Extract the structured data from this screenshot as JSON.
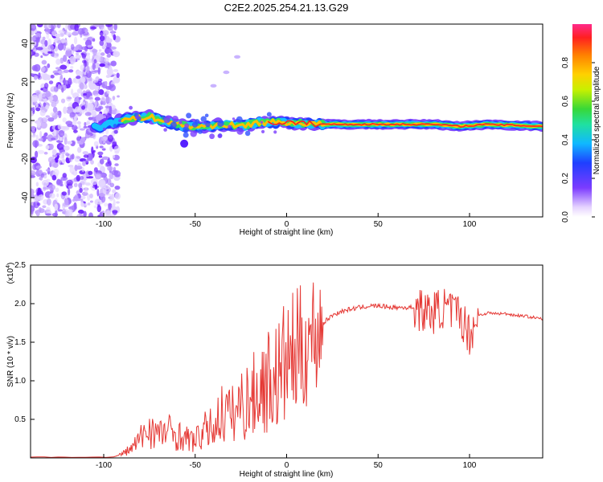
{
  "title": "C2E2.2025.254.21.13.G29",
  "colors": {
    "snr_line": "#e53935",
    "background": "#ffffff",
    "axis": "#000000"
  },
  "chart_data": [
    {
      "type": "heatmap",
      "title": "C2E2.2025.254.21.13.G29",
      "xlabel": "Height of straight line (km)",
      "ylabel": "Frequency (Hz)",
      "xlim": [
        -140,
        140
      ],
      "ylim": [
        -50,
        50
      ],
      "xticks": [
        "-100",
        "-50",
        "0",
        "50",
        "100"
      ],
      "yticks": [
        "-40",
        "-20",
        "0",
        "20",
        "40"
      ],
      "colorbar": {
        "label": "Normalized spectral amplitude",
        "ticks": [
          "0.0",
          "0.2",
          "0.4",
          "0.6",
          "0.8"
        ],
        "range": [
          0,
          1
        ]
      },
      "ridge": [
        {
          "x": -105,
          "f": -4
        },
        {
          "x": -95,
          "f": -1
        },
        {
          "x": -85,
          "f": 1
        },
        {
          "x": -75,
          "f": 2
        },
        {
          "x": -65,
          "f": -1
        },
        {
          "x": -55,
          "f": -3
        },
        {
          "x": -45,
          "f": -3
        },
        {
          "x": -35,
          "f": -2
        },
        {
          "x": -25,
          "f": -3
        },
        {
          "x": -15,
          "f": -1
        },
        {
          "x": 0,
          "f": -1
        },
        {
          "x": 20,
          "f": -2
        },
        {
          "x": 60,
          "f": -2
        },
        {
          "x": 80,
          "f": -2
        },
        {
          "x": 95,
          "f": -3
        },
        {
          "x": 110,
          "f": -2
        },
        {
          "x": 140,
          "f": -3
        }
      ],
      "faint_trace": [
        {
          "x": -40,
          "f": 18
        },
        {
          "x": -33,
          "f": 25
        },
        {
          "x": -27,
          "f": 33
        }
      ]
    },
    {
      "type": "line",
      "xlabel": "Height of straight line (km)",
      "ylabel": "SNR (10 * v/v)",
      "scale_label": "(x10",
      "scale_exp": "4",
      "scale_close": ")",
      "xlim": [
        -140,
        140
      ],
      "ylim": [
        0,
        2.5
      ],
      "xticks": [
        "-100",
        "-50",
        "0",
        "50",
        "100"
      ],
      "yticks": [
        "0.5",
        "1.0",
        "1.5",
        "2.0",
        "2.5"
      ],
      "series": [
        {
          "name": "SNR",
          "x": [
            -140,
            -95,
            -90,
            -85,
            -80,
            -75,
            -70,
            -65,
            -60,
            -55,
            -50,
            -45,
            -40,
            -35,
            -30,
            -25,
            -20,
            -15,
            -10,
            -5,
            0,
            5,
            10,
            15,
            20,
            25,
            30,
            35,
            40,
            45,
            50,
            55,
            60,
            65,
            70,
            75,
            80,
            85,
            90,
            95,
            100,
            105,
            110,
            115,
            120,
            125,
            130,
            135,
            140
          ],
          "y": [
            0.01,
            0.01,
            0.05,
            0.12,
            0.25,
            0.4,
            0.3,
            0.35,
            0.3,
            0.25,
            0.22,
            0.35,
            0.4,
            0.6,
            0.55,
            0.7,
            0.75,
            0.9,
            1.0,
            1.05,
            1.25,
            1.35,
            1.45,
            1.6,
            1.75,
            1.85,
            1.9,
            1.93,
            1.95,
            1.97,
            1.97,
            1.96,
            1.95,
            1.95,
            1.95,
            1.9,
            1.88,
            1.95,
            1.9,
            1.85,
            1.6,
            1.85,
            1.88,
            1.87,
            1.87,
            1.85,
            1.84,
            1.82,
            1.8
          ],
          "color": "#e53935"
        }
      ]
    }
  ]
}
